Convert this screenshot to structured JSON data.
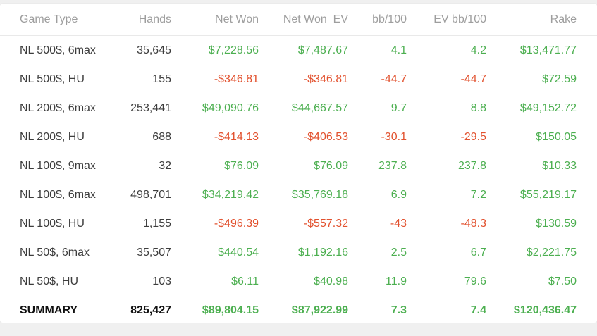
{
  "colors": {
    "positive": "#4caf50",
    "negative": "#e2512e",
    "header_text": "#9e9e9e",
    "body_text": "#3d3d3d",
    "page_bg": "#f0f0f0",
    "card_bg": "#ffffff"
  },
  "table": {
    "columns": [
      {
        "key": "game_type",
        "label": "Game Type",
        "colored": false
      },
      {
        "key": "hands",
        "label": "Hands",
        "colored": false
      },
      {
        "key": "net_won",
        "label": "Net Won",
        "colored": true
      },
      {
        "key": "net_won_ev",
        "label": "Net Won  EV",
        "colored": true
      },
      {
        "key": "bb100",
        "label": "bb/100",
        "colored": true
      },
      {
        "key": "ev_bb100",
        "label": "EV bb/100",
        "colored": true
      },
      {
        "key": "rake",
        "label": "Rake",
        "colored": true
      }
    ],
    "rows": [
      {
        "game_type": "NL 500$, 6max",
        "hands": "35,645",
        "net_won": "$7,228.56",
        "net_won_ev": "$7,487.67",
        "bb100": "4.1",
        "ev_bb100": "4.2",
        "rake": "$13,471.77"
      },
      {
        "game_type": "NL 500$, HU",
        "hands": "155",
        "net_won": "-$346.81",
        "net_won_ev": "-$346.81",
        "bb100": "-44.7",
        "ev_bb100": "-44.7",
        "rake": "$72.59"
      },
      {
        "game_type": "NL 200$, 6max",
        "hands": "253,441",
        "net_won": "$49,090.76",
        "net_won_ev": "$44,667.57",
        "bb100": "9.7",
        "ev_bb100": "8.8",
        "rake": "$49,152.72"
      },
      {
        "game_type": "NL 200$, HU",
        "hands": "688",
        "net_won": "-$414.13",
        "net_won_ev": "-$406.53",
        "bb100": "-30.1",
        "ev_bb100": "-29.5",
        "rake": "$150.05"
      },
      {
        "game_type": "NL 100$, 9max",
        "hands": "32",
        "net_won": "$76.09",
        "net_won_ev": "$76.09",
        "bb100": "237.8",
        "ev_bb100": "237.8",
        "rake": "$10.33"
      },
      {
        "game_type": "NL 100$, 6max",
        "hands": "498,701",
        "net_won": "$34,219.42",
        "net_won_ev": "$35,769.18",
        "bb100": "6.9",
        "ev_bb100": "7.2",
        "rake": "$55,219.17"
      },
      {
        "game_type": "NL 100$, HU",
        "hands": "1,155",
        "net_won": "-$496.39",
        "net_won_ev": "-$557.32",
        "bb100": "-43",
        "ev_bb100": "-48.3",
        "rake": "$130.59"
      },
      {
        "game_type": "NL 50$, 6max",
        "hands": "35,507",
        "net_won": "$440.54",
        "net_won_ev": "$1,192.16",
        "bb100": "2.5",
        "ev_bb100": "6.7",
        "rake": "$2,221.75"
      },
      {
        "game_type": "NL 50$, HU",
        "hands": "103",
        "net_won": "$6.11",
        "net_won_ev": "$40.98",
        "bb100": "11.9",
        "ev_bb100": "79.6",
        "rake": "$7.50"
      }
    ],
    "summary": {
      "game_type": "SUMMARY",
      "hands": "825,427",
      "net_won": "$89,804.15",
      "net_won_ev": "$87,922.99",
      "bb100": "7.3",
      "ev_bb100": "7.4",
      "rake": "$120,436.47"
    }
  }
}
